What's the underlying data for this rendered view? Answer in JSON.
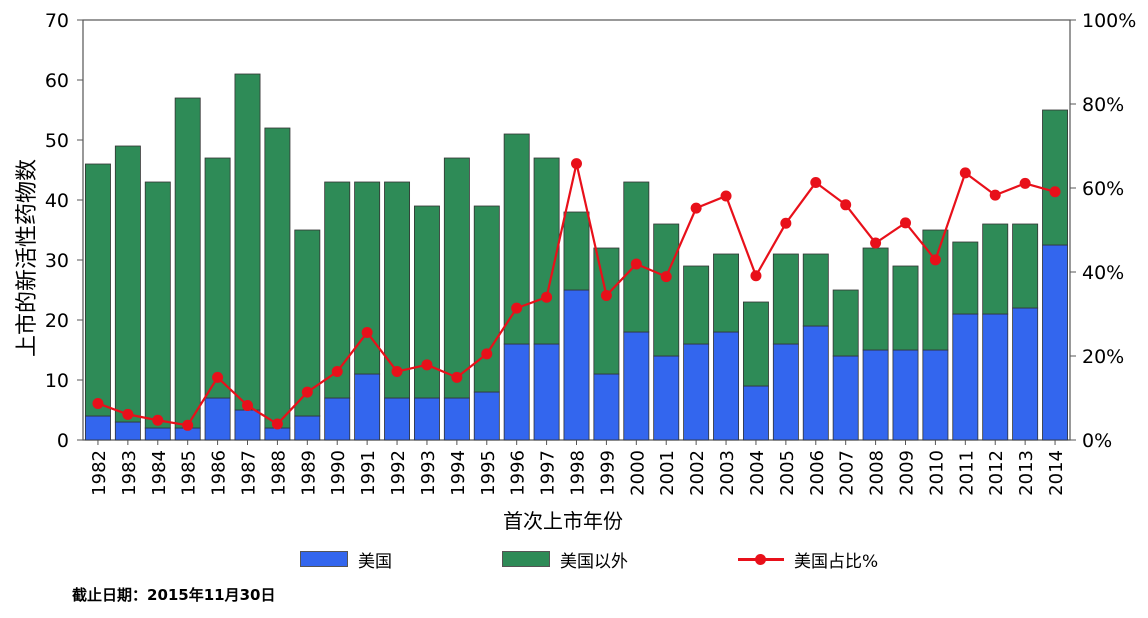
{
  "chart_data": {
    "type": "bar",
    "stacked": true,
    "categories": [
      "1982",
      "1983",
      "1984",
      "1985",
      "1986",
      "1987",
      "1988",
      "1989",
      "1990",
      "1991",
      "1992",
      "1993",
      "1994",
      "1995",
      "1996",
      "1997",
      "1998",
      "1999",
      "2000",
      "2001",
      "2002",
      "2003",
      "2004",
      "2005",
      "2006",
      "2007",
      "2008",
      "2009",
      "2010",
      "2011",
      "2012",
      "2013",
      "2014"
    ],
    "series": [
      {
        "name": "美国",
        "axis": "left",
        "color": "#3366ee",
        "values": [
          4,
          3,
          2,
          2,
          7,
          5,
          2,
          4,
          7,
          11,
          7,
          7,
          7,
          8,
          16,
          16,
          25,
          11,
          18,
          14,
          16,
          18,
          9,
          16,
          19,
          14,
          15,
          15,
          15,
          21,
          21,
          22,
          32.5
        ]
      },
      {
        "name": "美国以外",
        "axis": "left",
        "color": "#2e8b57",
        "values": [
          42,
          46,
          41,
          55,
          40,
          56,
          50,
          31,
          36,
          32,
          36,
          32,
          40,
          31,
          35,
          31,
          13,
          21,
          25,
          22,
          13,
          13,
          14,
          15,
          12,
          11,
          17,
          14,
          20,
          12,
          15,
          14,
          22.5
        ]
      },
      {
        "name": "美国占比%",
        "axis": "right",
        "type": "line",
        "color": "#e8101a",
        "values": [
          8.7,
          6.1,
          4.7,
          3.5,
          14.9,
          8.2,
          3.8,
          11.4,
          16.3,
          25.6,
          16.3,
          17.9,
          14.9,
          20.5,
          31.4,
          34.0,
          65.8,
          34.4,
          41.9,
          38.9,
          55.2,
          58.1,
          39.1,
          51.6,
          61.3,
          56.0,
          46.9,
          51.7,
          42.9,
          63.6,
          58.3,
          61.1,
          59.1
        ]
      }
    ],
    "ylabel": "上市的新活性药物数",
    "xlabel": "首次上市年份",
    "ylim": [
      0,
      70
    ],
    "yticks": [
      0,
      10,
      20,
      30,
      40,
      50,
      60,
      70
    ],
    "y2lim": [
      0,
      100
    ],
    "y2ticks": [
      "0%",
      "20%",
      "40%",
      "60%",
      "80%",
      "100%"
    ],
    "grid": false,
    "legend_position": "bottom"
  },
  "legend": {
    "us": "美国",
    "non_us": "美国以外",
    "share": "美国占比%"
  },
  "footnote": "截止日期：2015年11月30日"
}
